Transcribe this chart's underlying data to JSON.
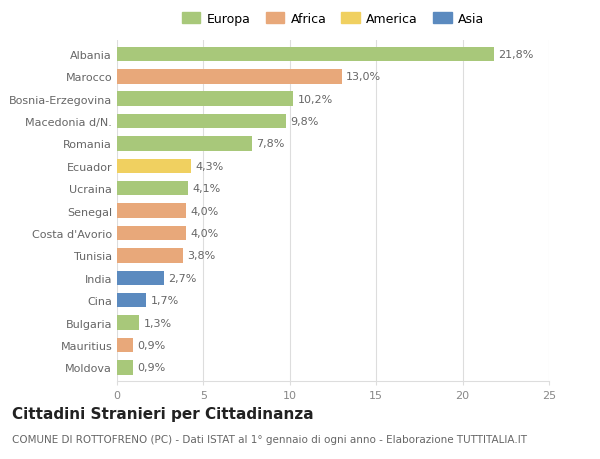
{
  "categories": [
    "Albania",
    "Marocco",
    "Bosnia-Erzegovina",
    "Macedonia d/N.",
    "Romania",
    "Ecuador",
    "Ucraina",
    "Senegal",
    "Costa d'Avorio",
    "Tunisia",
    "India",
    "Cina",
    "Bulgaria",
    "Mauritius",
    "Moldova"
  ],
  "values": [
    21.8,
    13.0,
    10.2,
    9.8,
    7.8,
    4.3,
    4.1,
    4.0,
    4.0,
    3.8,
    2.7,
    1.7,
    1.3,
    0.9,
    0.9
  ],
  "labels": [
    "21,8%",
    "13,0%",
    "10,2%",
    "9,8%",
    "7,8%",
    "4,3%",
    "4,1%",
    "4,0%",
    "4,0%",
    "3,8%",
    "2,7%",
    "1,7%",
    "1,3%",
    "0,9%",
    "0,9%"
  ],
  "continent": [
    "Europa",
    "Africa",
    "Europa",
    "Europa",
    "Europa",
    "America",
    "Europa",
    "Africa",
    "Africa",
    "Africa",
    "Asia",
    "Asia",
    "Europa",
    "Africa",
    "Europa"
  ],
  "colors": {
    "Europa": "#a8c87a",
    "Africa": "#e8a87a",
    "America": "#f0d060",
    "Asia": "#5b8abf"
  },
  "legend_order": [
    "Europa",
    "Africa",
    "America",
    "Asia"
  ],
  "title": "Cittadini Stranieri per Cittadinanza",
  "subtitle": "COMUNE DI ROTTOFRENO (PC) - Dati ISTAT al 1° gennaio di ogni anno - Elaborazione TUTTITALIA.IT",
  "xlim": [
    0,
    25
  ],
  "xticks": [
    0,
    5,
    10,
    15,
    20,
    25
  ],
  "background_color": "#ffffff",
  "bar_height": 0.65,
  "grid_color": "#dddddd",
  "label_fontsize": 8,
  "title_fontsize": 11,
  "subtitle_fontsize": 7.5,
  "tick_fontsize": 8,
  "legend_fontsize": 9
}
